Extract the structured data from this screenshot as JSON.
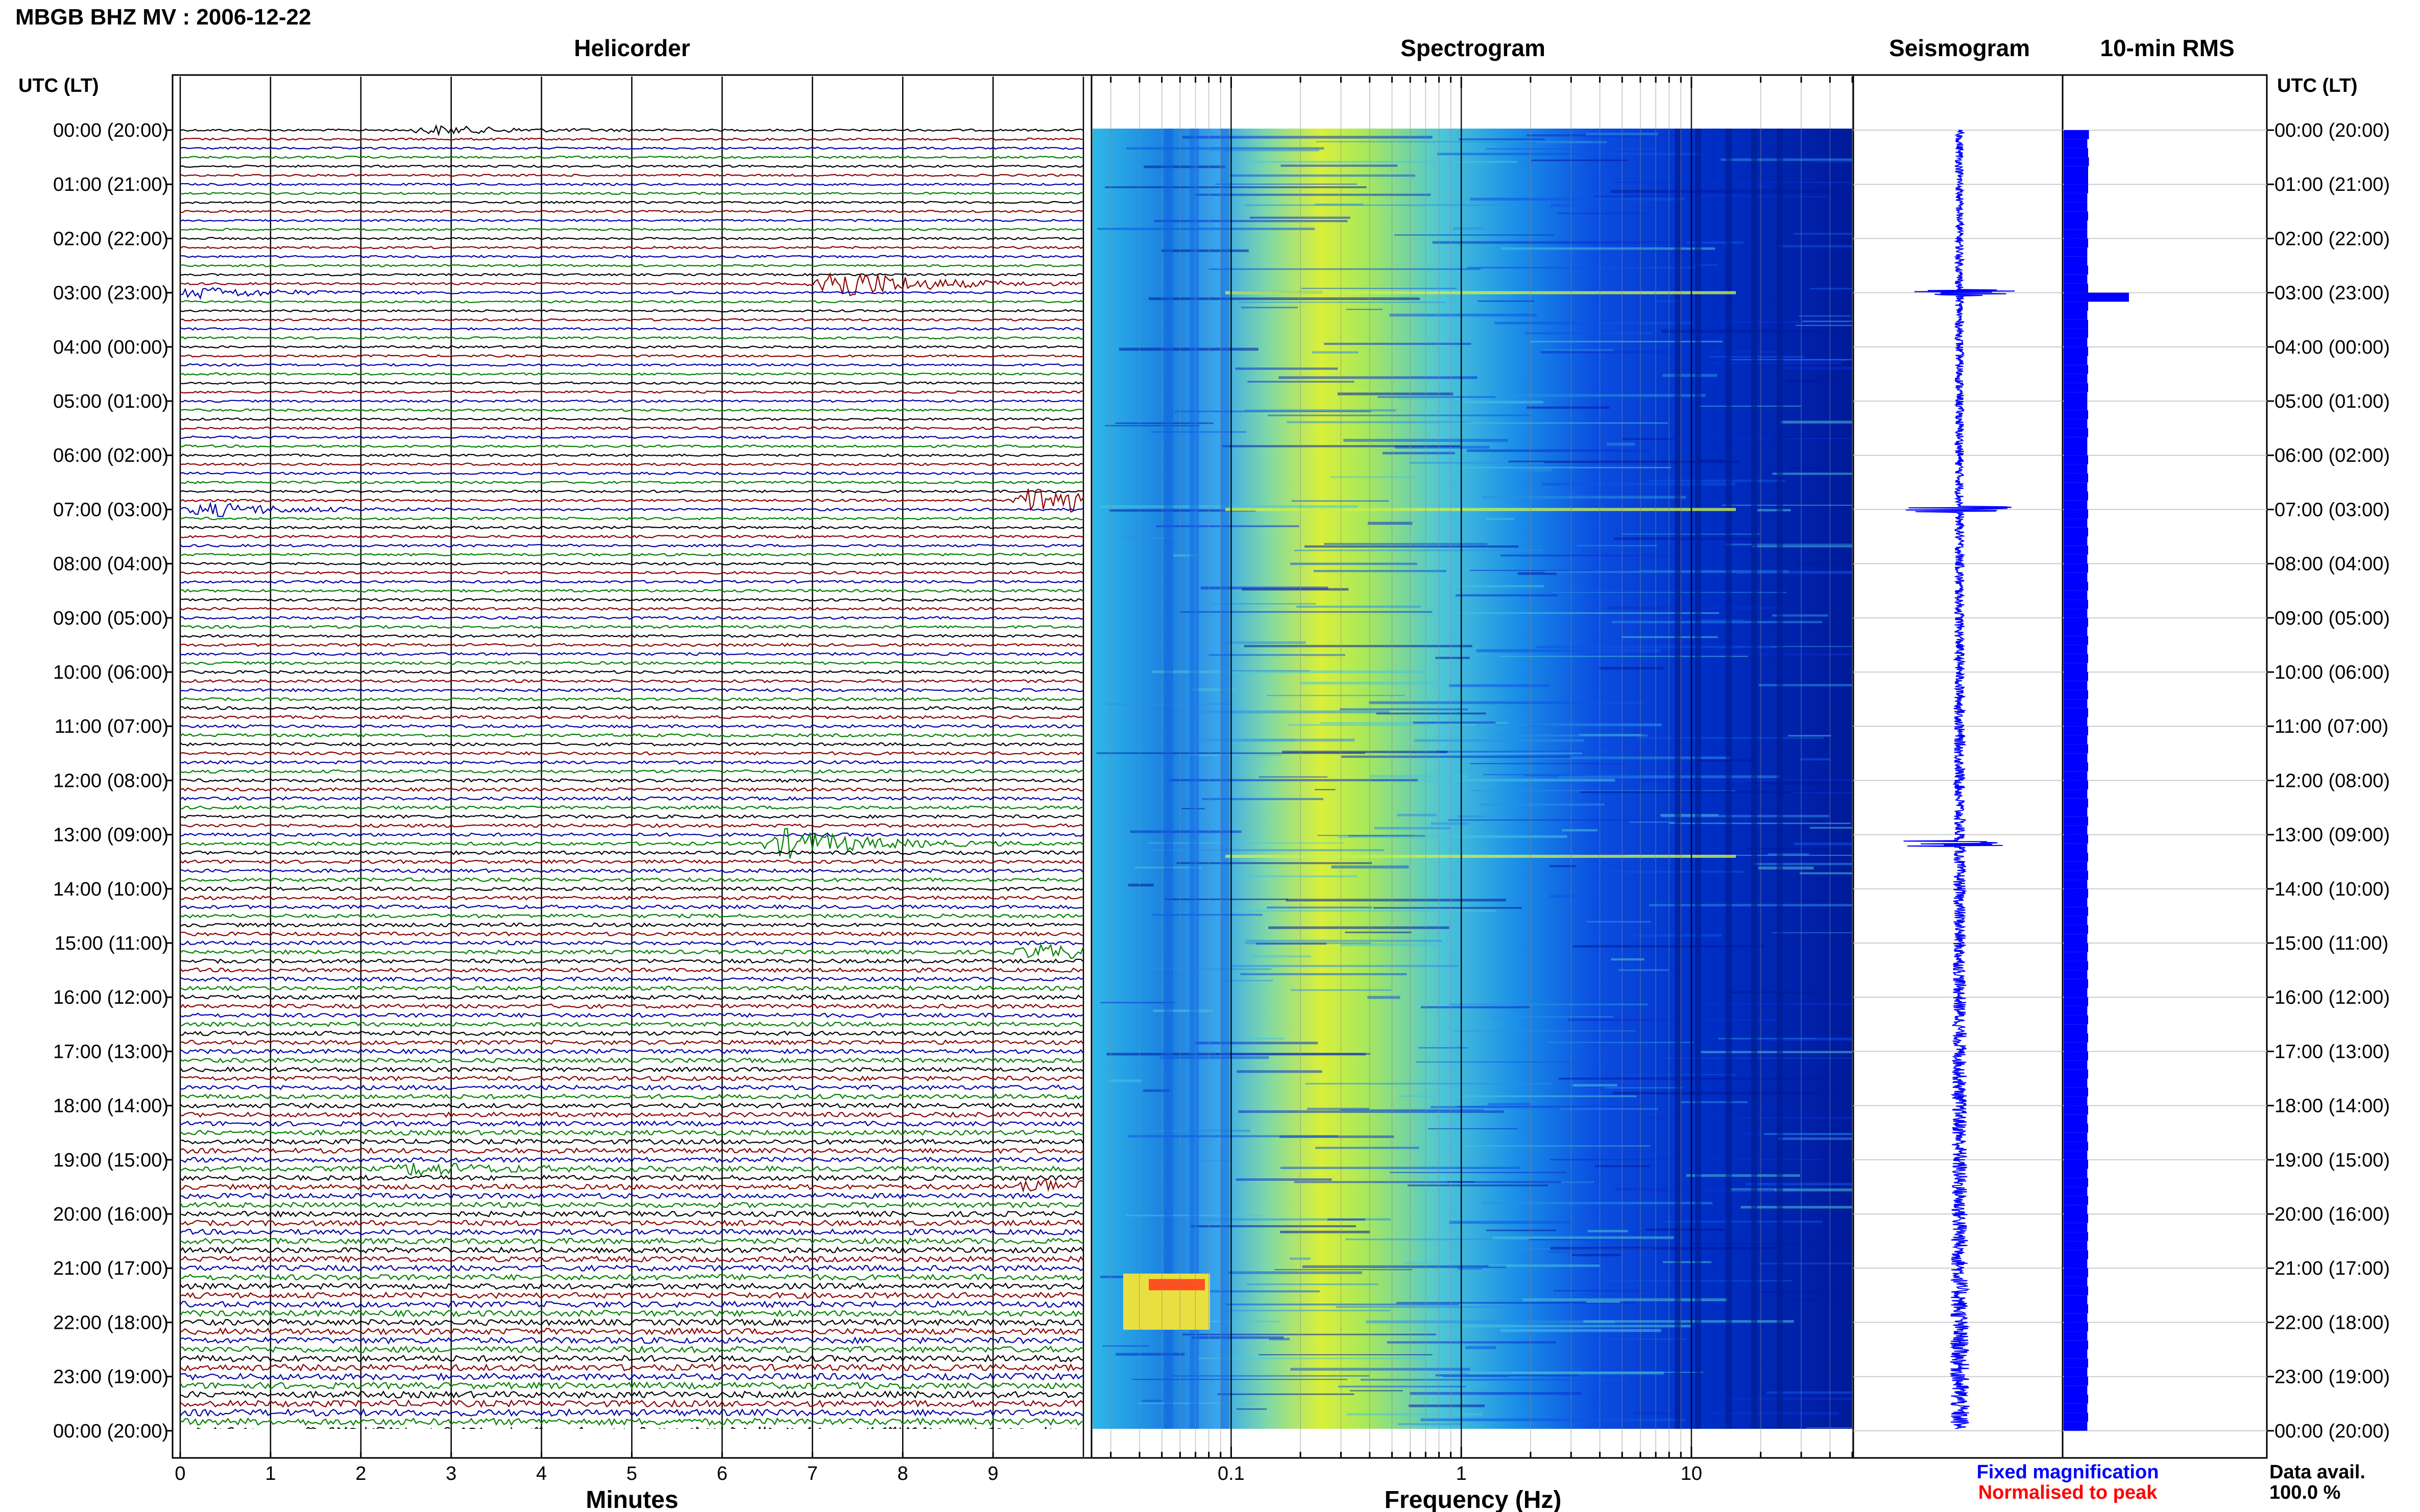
{
  "title": "MBGB BHZ MV : 2006-12-22",
  "panels": {
    "helicorder": "Helicorder",
    "spectrogram": "Spectrogram",
    "seismogram": "Seismogram",
    "rms": "10-min RMS"
  },
  "time_axis_label_left": "UTC (LT)",
  "time_axis_label_right": "UTC (LT)",
  "hour_labels": [
    "00:00 (20:00)",
    "01:00 (21:00)",
    "02:00 (22:00)",
    "03:00 (23:00)",
    "04:00 (00:00)",
    "05:00 (01:00)",
    "06:00 (02:00)",
    "07:00 (03:00)",
    "08:00 (04:00)",
    "09:00 (05:00)",
    "10:00 (06:00)",
    "11:00 (07:00)",
    "12:00 (08:00)",
    "13:00 (09:00)",
    "14:00 (10:00)",
    "15:00 (11:00)",
    "16:00 (12:00)",
    "17:00 (13:00)",
    "18:00 (14:00)",
    "19:00 (15:00)",
    "20:00 (16:00)",
    "21:00 (17:00)",
    "22:00 (18:00)",
    "23:00 (19:00)",
    "00:00 (20:00)"
  ],
  "minutes_axis": {
    "label": "Minutes",
    "ticks": [
      "0",
      "1",
      "2",
      "3",
      "4",
      "5",
      "6",
      "7",
      "8",
      "9"
    ]
  },
  "frequency_axis": {
    "label": "Frequency (Hz)",
    "ticks": [
      "0.1",
      "1",
      "10"
    ],
    "scale": "log"
  },
  "legend": {
    "fixed": "Fixed magnification",
    "normalised": "Normalised to peak",
    "fixed_color": "#0000ff",
    "normalised_color": "#ff0000"
  },
  "data_avail": {
    "label": "Data avail.",
    "value": "100.0 %"
  },
  "colors": {
    "trace_cycle": [
      "#000000",
      "#8b0000",
      "#0000aa",
      "#008000"
    ],
    "rms_fill": "#0000ff",
    "seis_trace": "#0000ff"
  },
  "chart_data": [
    {
      "type": "line",
      "name": "helicorder",
      "lines_per_hour": 6,
      "minutes_per_line": 10,
      "events": [
        {
          "time_utc": "00:00",
          "minute": 2.8,
          "amplitude": 0.6
        },
        {
          "time_utc": "02:50",
          "minute": 7.2,
          "amplitude": 2.6
        },
        {
          "time_utc": "03:00",
          "minute": 0.2,
          "amplitude": 0.8
        },
        {
          "time_utc": "06:50",
          "minute": 9.5,
          "amplitude": 2.4
        },
        {
          "time_utc": "07:00",
          "minute": 0.3,
          "amplitude": 1.0
        },
        {
          "time_utc": "13:10",
          "minute": 6.7,
          "amplitude": 2.0
        },
        {
          "time_utc": "15:10",
          "minute": 9.5,
          "amplitude": 1.0
        },
        {
          "time_utc": "19:10",
          "minute": 2.6,
          "amplitude": 0.8
        },
        {
          "time_utc": "19:30",
          "minute": 9.5,
          "amplitude": 1.0
        }
      ]
    },
    {
      "type": "heatmap",
      "name": "spectrogram",
      "xlabel": "Frequency (Hz)",
      "xscale": "log",
      "xlim": [
        0.025,
        50
      ],
      "peak_band_hz": 0.25
    },
    {
      "type": "line",
      "name": "seismogram",
      "spikes_utc": [
        "03:00",
        "07:00",
        "13:10"
      ]
    },
    {
      "type": "bar",
      "name": "10-min RMS",
      "orientation": "horizontal",
      "values_relative": [
        0.31,
        0.29,
        0.3,
        0.31,
        0.3,
        0.3,
        0.3,
        0.29,
        0.29,
        0.3,
        0.29,
        0.29,
        0.3,
        0.29,
        0.29,
        0.3,
        0.29,
        0.3,
        0.8,
        0.3,
        0.29,
        0.3,
        0.3,
        0.29,
        0.3,
        0.29,
        0.3,
        0.29,
        0.3,
        0.29,
        0.29,
        0.3,
        0.29,
        0.3,
        0.29,
        0.29,
        0.3,
        0.29,
        0.3,
        0.29,
        0.3,
        0.29,
        0.3,
        0.29,
        0.3,
        0.29,
        0.3,
        0.29,
        0.3,
        0.29,
        0.3,
        0.29,
        0.3,
        0.29,
        0.3,
        0.29,
        0.3,
        0.29,
        0.3,
        0.29,
        0.3,
        0.29,
        0.3,
        0.29,
        0.3,
        0.29,
        0.3,
        0.29,
        0.3,
        0.29,
        0.3,
        0.29,
        0.3,
        0.29,
        0.3,
        0.29,
        0.3,
        0.29,
        0.3,
        0.29,
        0.3,
        0.29,
        0.3,
        0.29,
        0.3,
        0.29,
        0.3,
        0.29,
        0.3,
        0.29,
        0.3,
        0.29,
        0.3,
        0.29,
        0.3,
        0.29,
        0.3,
        0.29,
        0.3,
        0.29,
        0.3,
        0.29,
        0.3,
        0.29,
        0.3,
        0.29,
        0.3,
        0.29,
        0.3,
        0.29,
        0.3,
        0.29,
        0.3,
        0.29,
        0.3,
        0.29,
        0.3,
        0.29,
        0.3,
        0.29,
        0.3,
        0.29,
        0.3,
        0.29,
        0.3,
        0.29,
        0.3,
        0.29,
        0.3,
        0.29,
        0.3,
        0.29,
        0.3,
        0.29,
        0.3,
        0.29,
        0.3,
        0.29,
        0.3,
        0.29,
        0.3,
        0.29,
        0.3,
        0.29
      ]
    }
  ]
}
